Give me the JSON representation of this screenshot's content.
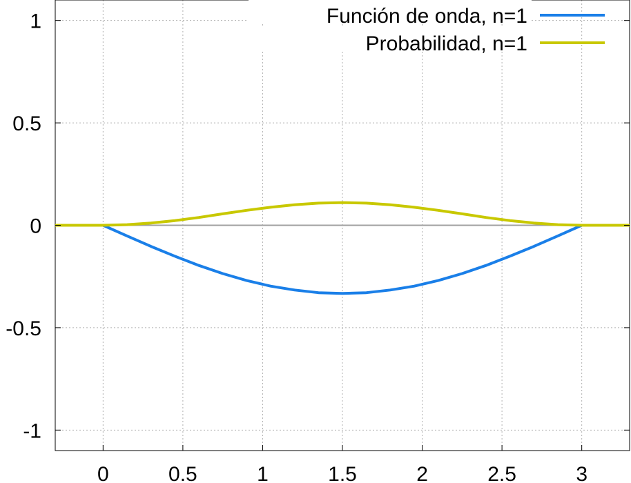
{
  "chart_data": {
    "type": "line",
    "title": "",
    "xlabel": "",
    "ylabel": "",
    "xlim": [
      -0.3,
      3.3
    ],
    "ylim": [
      -1.1,
      1.1
    ],
    "x_ticks": [
      "0",
      "0.5",
      "1",
      "1.5",
      "2",
      "2.5",
      "3"
    ],
    "x_tick_values": [
      0,
      0.5,
      1,
      1.5,
      2,
      2.5,
      3
    ],
    "y_ticks": [
      "1",
      "0.5",
      "0",
      "-0.5",
      "-1"
    ],
    "y_tick_values": [
      1,
      0.5,
      0,
      -0.5,
      -1
    ],
    "grid": true,
    "legend_position": "top-right",
    "series": [
      {
        "name": "Función de onda, n=1",
        "color": "#1a7fe8",
        "x": [
          -0.3,
          0,
          0.15,
          0.3,
          0.45,
          0.6,
          0.75,
          0.9,
          1.05,
          1.2,
          1.35,
          1.5,
          1.65,
          1.8,
          1.95,
          2.1,
          2.25,
          2.4,
          2.55,
          2.7,
          2.85,
          3.0,
          3.3
        ],
        "y": [
          0,
          0,
          -0.052,
          -0.103,
          -0.151,
          -0.196,
          -0.236,
          -0.27,
          -0.297,
          -0.316,
          -0.329,
          -0.333,
          -0.329,
          -0.316,
          -0.297,
          -0.27,
          -0.236,
          -0.196,
          -0.151,
          -0.103,
          -0.052,
          0,
          0
        ]
      },
      {
        "name": "Probabilidad, n=1",
        "color": "#c8c800",
        "x": [
          -0.3,
          0,
          0.15,
          0.3,
          0.45,
          0.6,
          0.75,
          0.9,
          1.05,
          1.2,
          1.35,
          1.5,
          1.65,
          1.8,
          1.95,
          2.1,
          2.25,
          2.4,
          2.55,
          2.7,
          2.85,
          3.0,
          3.3
        ],
        "y": [
          0,
          0,
          0.003,
          0.011,
          0.023,
          0.038,
          0.056,
          0.073,
          0.088,
          0.1,
          0.108,
          0.111,
          0.108,
          0.1,
          0.088,
          0.073,
          0.056,
          0.038,
          0.023,
          0.011,
          0.003,
          0,
          0
        ]
      }
    ]
  }
}
